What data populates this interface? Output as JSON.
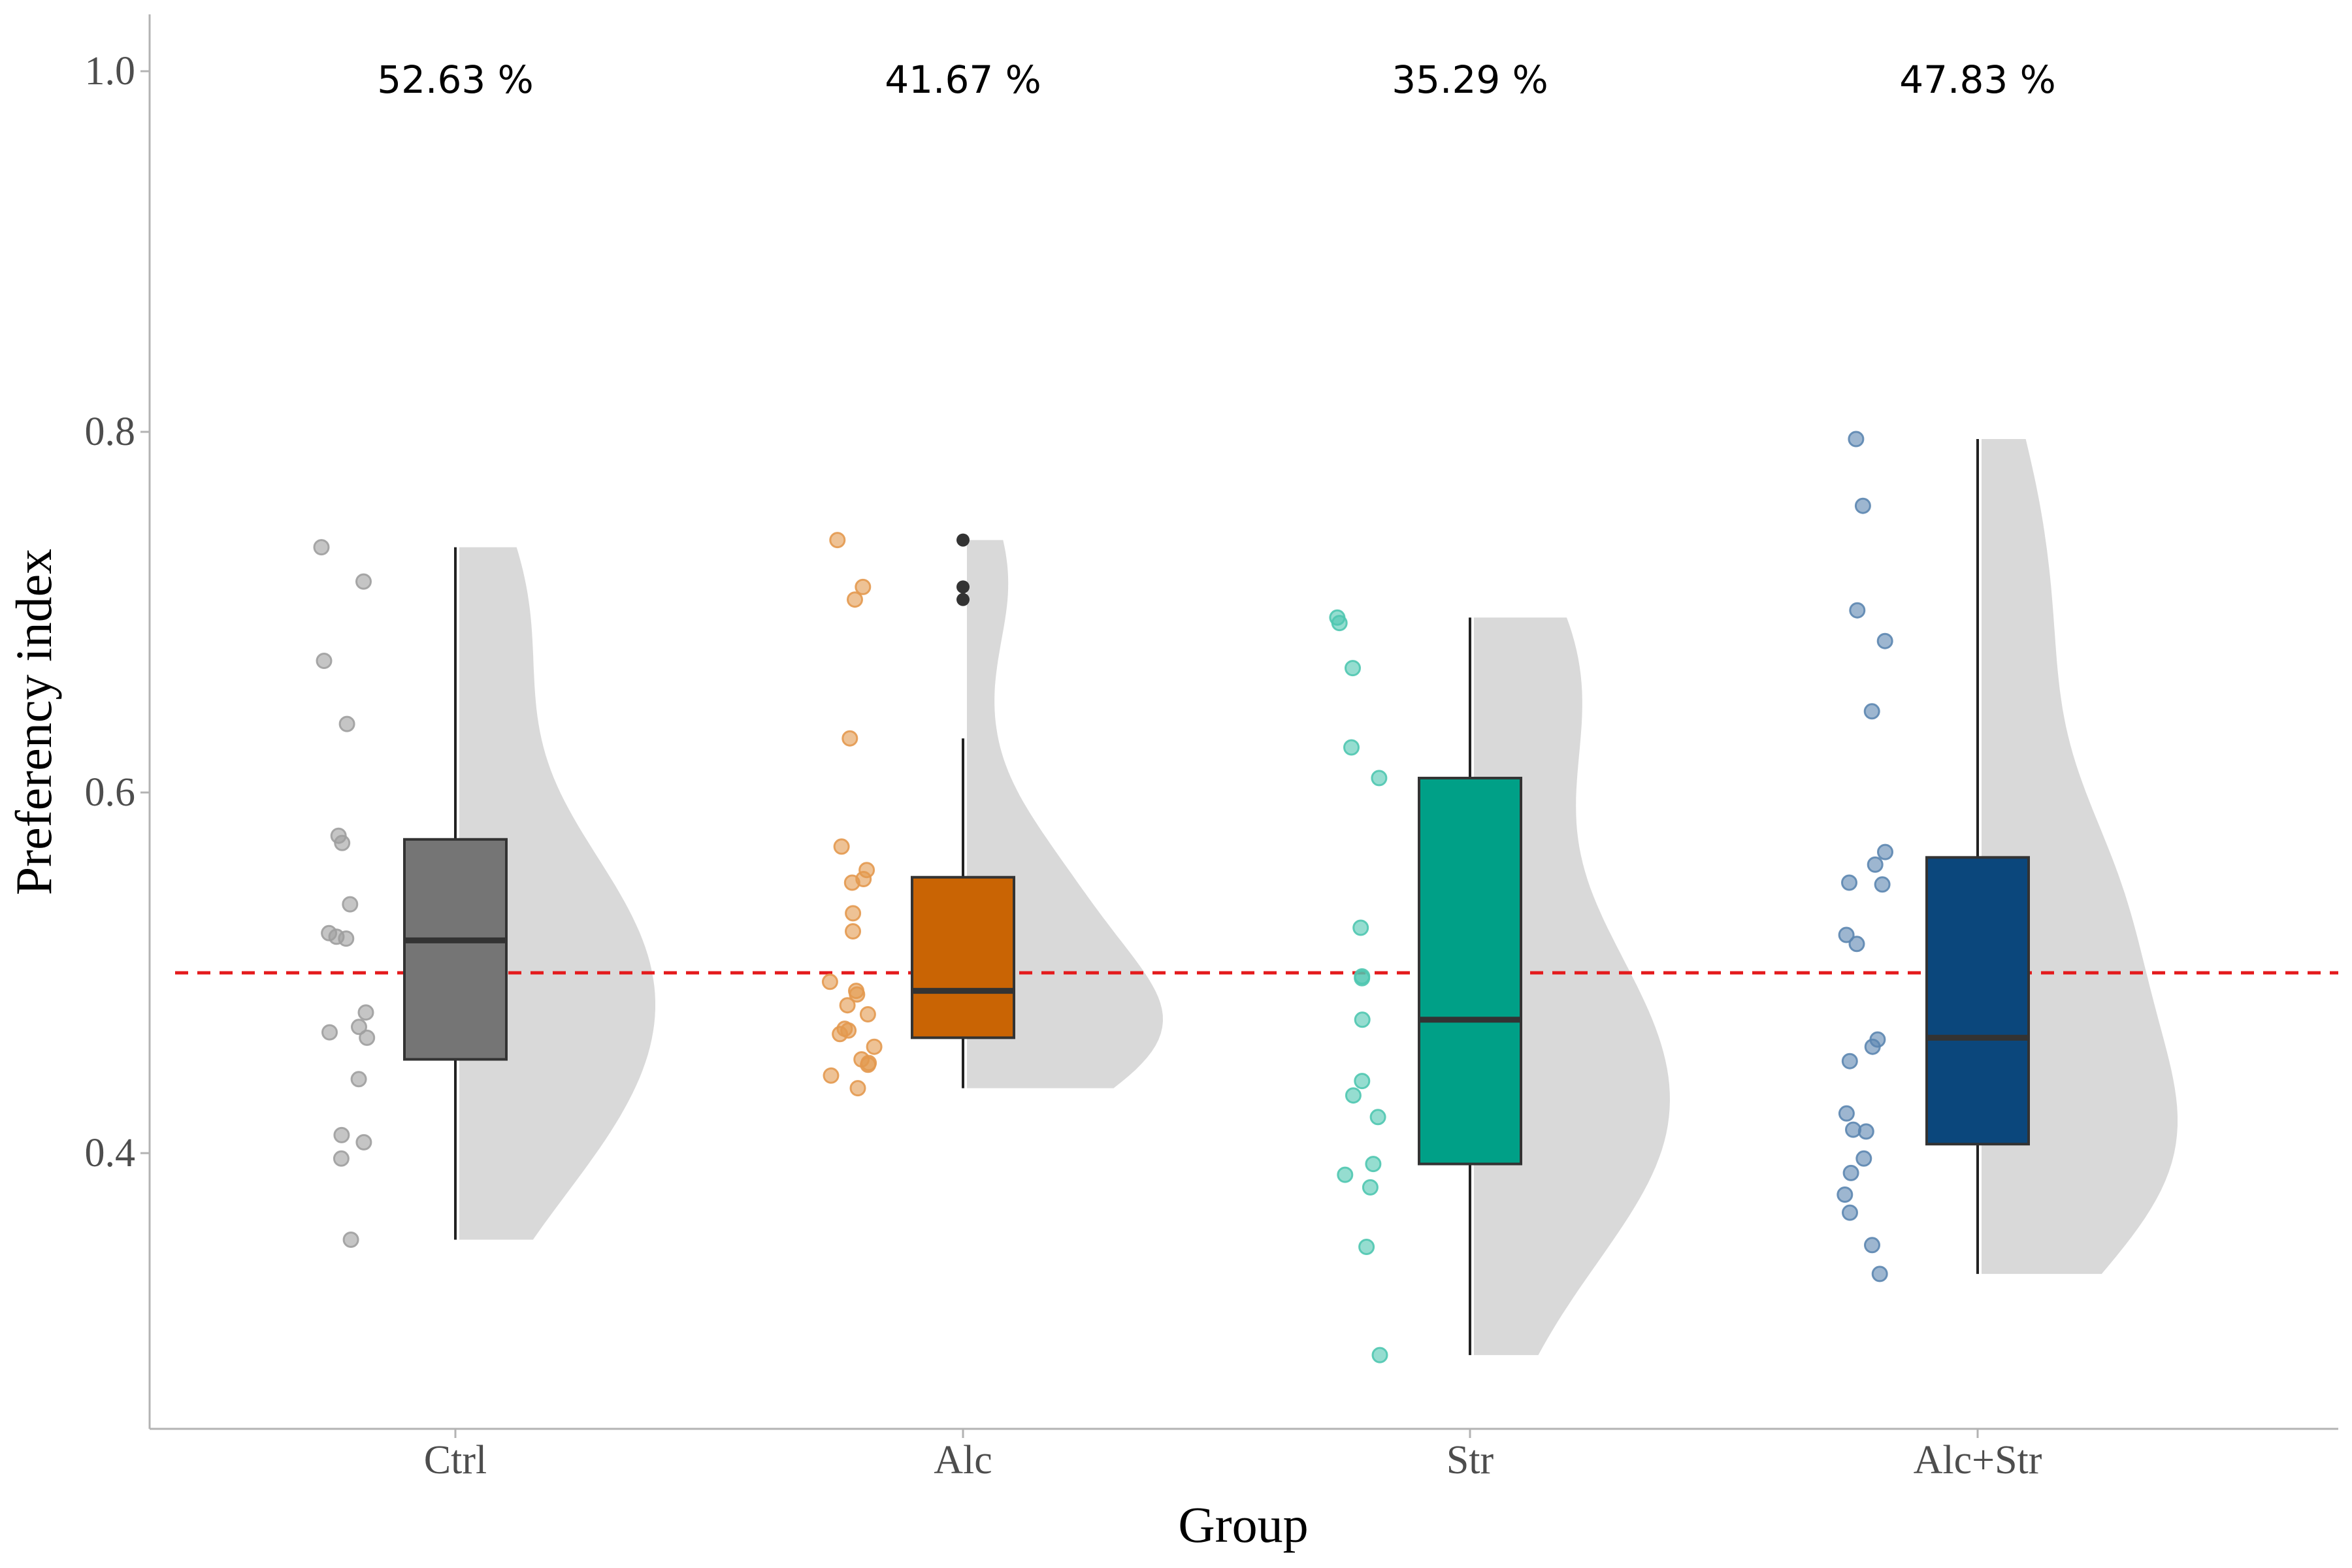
{
  "chart_data": {
    "type": "raincloud",
    "xlabel": "Group",
    "ylabel": "Preferency index",
    "ylim": [
      0.25,
      1.03
    ],
    "yticks": [
      0.4,
      0.6,
      0.8,
      1.0
    ],
    "ytick_labels": [
      "0.4",
      "0.6",
      "0.8",
      "1.0"
    ],
    "reference_line": {
      "y": 0.5,
      "style": "dashed",
      "color": "#e41a1c"
    },
    "groups": [
      {
        "name": "Ctrl",
        "percent_label": "52.63 %",
        "color": "#757575",
        "point_color": "#9e9e9e",
        "box": {
          "q1": 0.452,
          "median": 0.518,
          "q3": 0.574,
          "whisker_low": 0.352,
          "whisker_high": 0.736
        },
        "outliers": [],
        "points": [
          0.736,
          0.717,
          0.673,
          0.638,
          0.576,
          0.572,
          0.538,
          0.522,
          0.52,
          0.519,
          0.478,
          0.47,
          0.467,
          0.464,
          0.441,
          0.41,
          0.406,
          0.397,
          0.352
        ]
      },
      {
        "name": "Alc",
        "percent_label": "41.67 %",
        "color": "#c96404",
        "point_color": "#e3994f",
        "box": {
          "q1": 0.464,
          "median": 0.49,
          "q3": 0.553,
          "whisker_low": 0.436,
          "whisker_high": 0.63
        },
        "outliers": [
          0.74,
          0.714,
          0.707
        ],
        "points": [
          0.74,
          0.714,
          0.707,
          0.63,
          0.57,
          0.557,
          0.552,
          0.55,
          0.533,
          0.523,
          0.495,
          0.49,
          0.488,
          0.482,
          0.477,
          0.469,
          0.468,
          0.466,
          0.459,
          0.452,
          0.45,
          0.449,
          0.443,
          0.436
        ]
      },
      {
        "name": "Str",
        "percent_label": "35.29 %",
        "color": "#00a087",
        "point_color": "#4fc6b0",
        "box": {
          "q1": 0.394,
          "median": 0.474,
          "q3": 0.608,
          "whisker_low": 0.288,
          "whisker_high": 0.697
        },
        "outliers": [],
        "points": [
          0.697,
          0.694,
          0.669,
          0.625,
          0.608,
          0.525,
          0.498,
          0.497,
          0.474,
          0.44,
          0.432,
          0.42,
          0.394,
          0.388,
          0.381,
          0.348,
          0.288
        ]
      },
      {
        "name": "Alc+Str",
        "percent_label": "47.83 %",
        "color": "#0b477c",
        "point_color": "#5c86b0",
        "box": {
          "q1": 0.405,
          "median": 0.464,
          "q3": 0.564,
          "whisker_low": 0.333,
          "whisker_high": 0.796
        },
        "outliers": [],
        "points": [
          0.796,
          0.759,
          0.701,
          0.684,
          0.645,
          0.567,
          0.56,
          0.55,
          0.549,
          0.521,
          0.516,
          0.463,
          0.459,
          0.451,
          0.422,
          0.413,
          0.412,
          0.397,
          0.389,
          0.377,
          0.367,
          0.349,
          0.333
        ]
      }
    ]
  }
}
